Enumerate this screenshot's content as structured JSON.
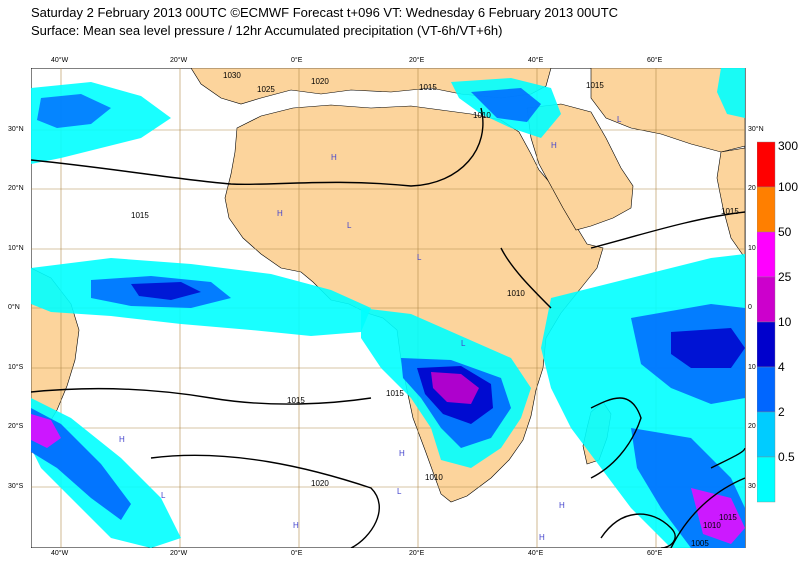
{
  "title_line1": "Saturday 2 February 2013 00UTC ©ECMWF Forecast t+096 VT: Wednesday 6 February 2013 00UTC",
  "title_line2": "Surface: Mean sea level pressure / 12hr Accumulated precipitation (VT-6h/VT+6h)",
  "lon_labels": [
    "40°W",
    "20°W",
    "0°E",
    "20°E",
    "40°E",
    "60°E"
  ],
  "lat_labels_left": [
    "30°N",
    "20°N",
    "10°N",
    "0°N",
    "10°S",
    "20°S",
    "30°S"
  ],
  "lat_labels_right": [
    "30°N",
    "20",
    "10",
    "0",
    "10",
    "20",
    "30"
  ],
  "isobar_labels": [
    "1030",
    "1025",
    "1020",
    "1015",
    "1010",
    "1015",
    "1010",
    "1015",
    "1015",
    "1020",
    "1015",
    "1010",
    "1005",
    "1010",
    "1015",
    "1015"
  ],
  "legend": {
    "levels": [
      "300",
      "100",
      "50",
      "25",
      "10",
      "4",
      "2",
      "0.5"
    ],
    "colors": [
      "#ff0000",
      "#ff7f00",
      "#ff00ff",
      "#cc00cc",
      "#0000cc",
      "#0066ff",
      "#00ccff",
      "#00ffff"
    ]
  },
  "colors": {
    "ocean": "#ffffff",
    "land": "#fcd49c",
    "grid": "#b0894a",
    "coast": "#000000"
  }
}
